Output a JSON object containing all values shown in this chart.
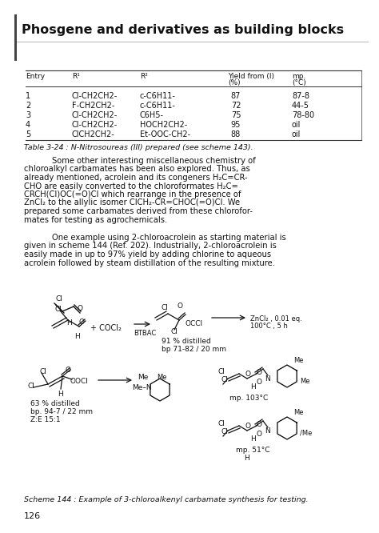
{
  "title": "Phosgene and derivatives as building blocks",
  "page_number": "126",
  "background_color": "#ffffff",
  "text_color": "#111111",
  "table_caption": "Table 3-24 : N-Nitrosoureas (III) prepared (see scheme 143).",
  "scheme_caption": "Scheme 144 : Example of 3-chloroalkenyl carbamate synthesis for testing.",
  "table_rows": [
    [
      "1",
      "Cl-CH2CH2-",
      "c-C6H11-",
      "87",
      "87-8"
    ],
    [
      "2",
      "F-CH2CH2-",
      "c-C6H11-",
      "72",
      "44-5"
    ],
    [
      "3",
      "Cl-CH2CH2-",
      "C6H5-",
      "75",
      "78-80"
    ],
    [
      "4",
      "Cl-CH2CH2-",
      "HOCH2CH2-",
      "95",
      "oil"
    ],
    [
      "5",
      "ClCH2CH2-",
      "Et-OOC-CH2-",
      "88",
      "oil"
    ]
  ],
  "para1_lines": [
    "Some other interesting miscellaneous chemistry of",
    "chloroalkyl carbamates has been also explored. Thus, as",
    "already mentioned, acrolein and its congeners H₂C=CR-",
    "CHO are easily converted to the chloroformates H₂C=",
    "CRCH(Cl)OC(=O)Cl which rearrange in the presence of",
    "ZnCl₂ to the allylic isomer ClCH₂-CR=CHOC(=O)Cl. We",
    "prepared some carbamates derived from these chlorofor-",
    "mates for testing as agrochemicals."
  ],
  "para2_lines": [
    "One example using 2-chloroacrolein as starting material is",
    "given in scheme 144 (Ref. 202). Industrially, 2-chloroacrolein is",
    "easily made in up to 97% yield by adding chlorine to aqueous",
    "acrolein followed by steam distillation of the resulting mixture."
  ]
}
